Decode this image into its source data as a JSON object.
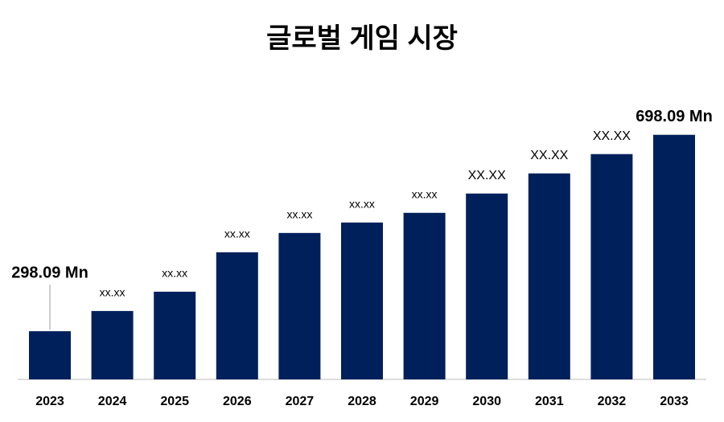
{
  "chart_data": {
    "type": "bar",
    "title": "글로벌 게임 시장",
    "categories": [
      "2023",
      "2024",
      "2025",
      "2026",
      "2027",
      "2028",
      "2029",
      "2030",
      "2031",
      "2032",
      "2033"
    ],
    "values": [
      298.09,
      339.3,
      378.6,
      458.9,
      498.2,
      519.5,
      539.2,
      578.5,
      619.5,
      658.8,
      698.09
    ],
    "value_labels": [
      "298.09 Mn",
      "xx.xx",
      "xx.xx",
      "xx.xx",
      "xx.xx",
      "xx.xx",
      "xx.xx",
      "XX.XX",
      "XX.XX",
      "XX.XX",
      "698.09 Mn"
    ],
    "color": "#00205b",
    "ylim": [
      200,
      750
    ]
  }
}
